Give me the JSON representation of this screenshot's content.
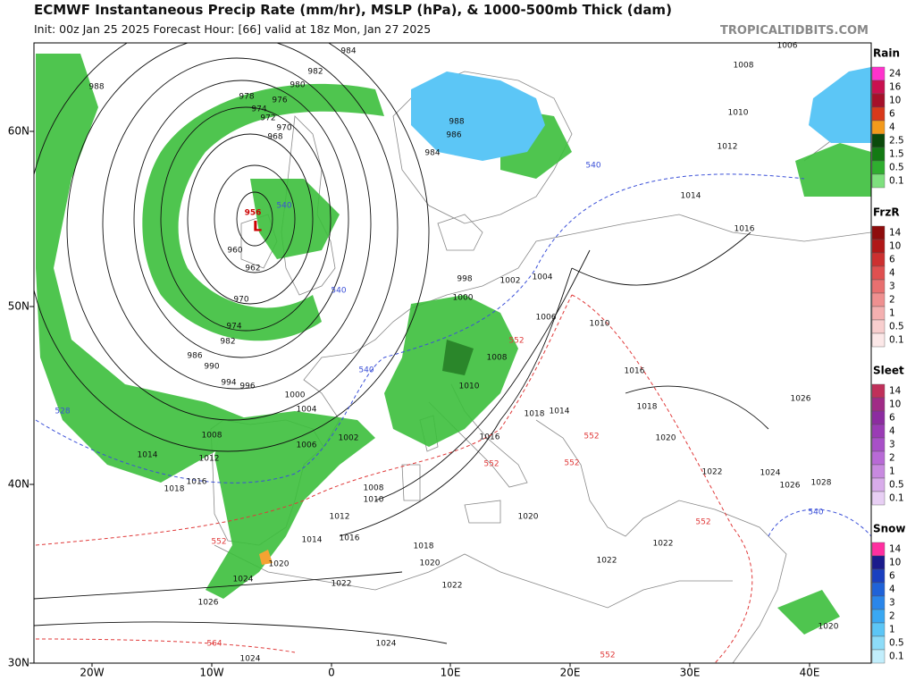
{
  "header": {
    "title": "ECMWF Instantaneous Precip Rate (mm/hr), MSLP (hPa), & 1000-500mb Thick (dam)",
    "subtitle": "Init: 00z Jan 25 2025   Forecast Hour: [66]   valid at 18z Mon, Jan 27 2025",
    "watermark": "TROPICALTIDBITS.COM"
  },
  "axes": {
    "lat_labels": [
      "60N",
      "50N",
      "40N",
      "30N"
    ],
    "lon_labels": [
      "20W",
      "10W",
      "0",
      "10E",
      "20E",
      "30E",
      "40E"
    ]
  },
  "legend": [
    {
      "title": "Rain",
      "labels": [
        24,
        16,
        10,
        6,
        4,
        2.5,
        1.5,
        0.5,
        0.1
      ],
      "colors": [
        "#ff33cc",
        "#c8104f",
        "#a5102a",
        "#d8391b",
        "#f39a1c",
        "#0b4a0b",
        "#137a13",
        "#2fae2f",
        "#7ee07e"
      ]
    },
    {
      "title": "FrzR",
      "labels": [
        14,
        10,
        6,
        4,
        3,
        2,
        1,
        0.5,
        0.1
      ],
      "colors": [
        "#8e0c0c",
        "#b01818",
        "#cc3030",
        "#df5050",
        "#e87070",
        "#ef9090",
        "#f4b0b0",
        "#f8cece",
        "#fce8e8"
      ]
    },
    {
      "title": "Sleet",
      "labels": [
        14,
        10,
        6,
        4,
        3,
        2,
        1,
        0.5,
        0.1
      ],
      "colors": [
        "#c0305a",
        "#a02b86",
        "#8c2ca0",
        "#9a3cb5",
        "#a850c8",
        "#b86ad6",
        "#c88ae0",
        "#d8acea",
        "#e8cff4"
      ]
    },
    {
      "title": "Snow",
      "labels": [
        14,
        10,
        6,
        4,
        3,
        2,
        1,
        0.5,
        0.1
      ],
      "colors": [
        "#ff2fa0",
        "#1b1b8c",
        "#1a3fc0",
        "#1f62d8",
        "#2a86ea",
        "#3aa8f2",
        "#5cc6f6",
        "#8ddcf8",
        "#c2eefc"
      ]
    }
  ],
  "map": {
    "low_label": {
      "symbol": "L",
      "pressure": 956
    },
    "isobar_labels": [
      984,
      982,
      980,
      988,
      978,
      976,
      974,
      972,
      970,
      968,
      960,
      962,
      970,
      974,
      982,
      986,
      990,
      994,
      996,
      1000,
      1004,
      1008,
      1012,
      1014,
      1016,
      1018,
      1006,
      1002,
      1008,
      1010,
      1012,
      1014,
      1016,
      1018,
      1020,
      1022,
      1020,
      1024,
      1026,
      1024,
      1024,
      1022,
      1020,
      1022,
      1022,
      1022,
      1024,
      1026,
      1028,
      1026,
      1020,
      1018,
      1016,
      1014,
      1018,
      1016,
      1010,
      1006,
      1004,
      1002,
      998,
      1000,
      1008,
      1010,
      1014,
      1016,
      1012,
      1010,
      1008,
      1006,
      988,
      986,
      984,
      1020
    ],
    "thickness_labels_cold": [
      540,
      540,
      540,
      540,
      528,
      540
    ],
    "thickness_labels_warm": [
      552,
      552,
      552,
      552,
      552,
      552,
      564,
      552
    ]
  }
}
